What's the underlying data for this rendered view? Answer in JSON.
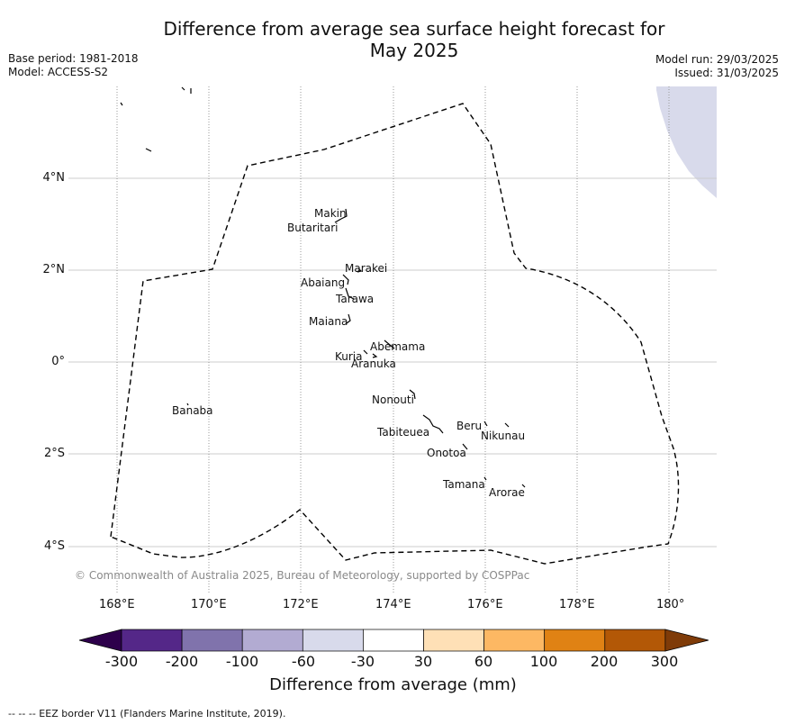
{
  "title_line1": "Difference from average sea surface height forecast for",
  "title_line2": "May 2025",
  "base_period": "Base period: 1981-2018",
  "model": "Model: ACCESS-S2",
  "model_run": "Model run: 29/03/2025",
  "issued": "Issued: 31/03/2025",
  "copyright": "© Commonwealth of Australia 2025, Bureau of Meteorology, supported by COSPPac",
  "footnote": "--  --  -- EEZ border V11 (Flanders Marine Institute, 2019).",
  "lat_ticks": [
    "4°N",
    "2°N",
    "0°",
    "2°S",
    "4°S"
  ],
  "lon_ticks": [
    "168°E",
    "170°E",
    "172°E",
    "174°E",
    "176°E",
    "178°E",
    "180°"
  ],
  "islands": {
    "makin": "Makin",
    "butaritari": "Butaritari",
    "marakei": "Marakei",
    "abaiang": "Abaiang",
    "tarawa": "Tarawa",
    "maiana": "Maiana",
    "abemama": "Abemama",
    "kuria": "Kuria",
    "aranuka": "Aranuka",
    "banaba": "Banaba",
    "nonouti": "Nonouti",
    "beru": "Beru",
    "tabiteuea": "Tabiteuea",
    "nikunau": "Nikunau",
    "onotoa": "Onotoa",
    "tamana": "Tamana",
    "arorae": "Arorae"
  },
  "colorbar": {
    "title": "Difference from average (mm)",
    "tick_labels": [
      "-300",
      "-200",
      "-100",
      "-60",
      "-30",
      "30",
      "60",
      "100",
      "200",
      "300"
    ],
    "colors": [
      "#2d004b",
      "#542788",
      "#8073ac",
      "#b2abd2",
      "#d8daeb",
      "#ffffff",
      "#fee0b6",
      "#fdb863",
      "#e08214",
      "#b35806",
      "#7f3b08"
    ]
  },
  "map_field": {
    "anomaly_class_northeast": "-60 to -30",
    "fill_color": "#d8daeb"
  }
}
